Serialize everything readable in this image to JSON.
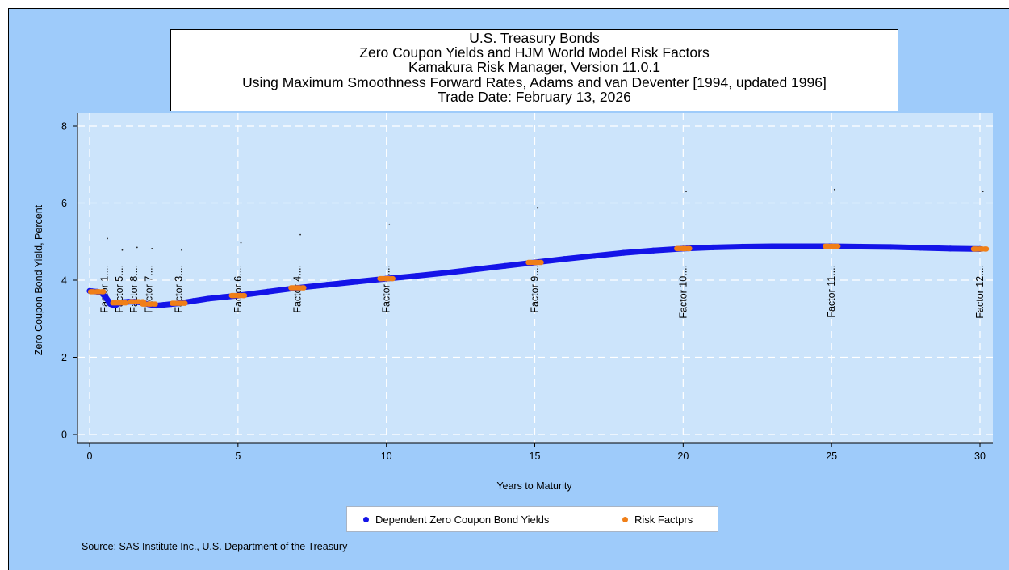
{
  "colors": {
    "frame_bg": "#9ecbfa",
    "plot_bg": "#cce4fb",
    "yield_series": "#1414e8",
    "factor_series": "#f07f18",
    "grid": "#ffffff"
  },
  "title_lines": [
    "U.S. Treasury Bonds",
    "Zero Coupon Yields and HJM World Model Risk Factors",
    "Kamakura Risk Manager, Version 11.0.1",
    "Using Maximum Smoothness Forward Rates, Adams and van Deventer [1994, updated 1996]",
    "Trade Date: February 13, 2026"
  ],
  "legend": {
    "yield_label": "Dependent Zero Coupon Bond Yields",
    "factor_label": "Risk Factprs"
  },
  "source": "Source: SAS Institute Inc., U.S. Department of the Treasury",
  "chart_data": {
    "type": "scatter",
    "xlabel": "Years to Maturity",
    "ylabel": "Zero Coupon Bond Yield, Percent",
    "xlim": [
      0,
      30
    ],
    "ylim": [
      0,
      8
    ],
    "xticks": [
      0,
      5,
      10,
      15,
      20,
      25,
      30
    ],
    "yticks": [
      0,
      2,
      4,
      6,
      8
    ],
    "grid": true,
    "legend_position": "bottom",
    "series": [
      {
        "name": "Dependent Zero Coupon Bond Yields",
        "style": "dense-dots",
        "x": [
          0,
          0.1,
          0.25,
          0.4,
          0.55,
          0.7,
          0.85,
          1,
          1.15,
          1.3,
          1.5,
          1.75,
          2,
          2.25,
          2.5,
          2.75,
          3,
          3.5,
          4,
          4.5,
          5,
          6,
          7,
          8,
          9,
          10,
          11,
          12,
          13,
          14,
          15,
          16,
          17,
          18,
          19,
          20,
          21,
          22,
          23,
          24,
          25,
          26,
          27,
          28,
          29,
          30
        ],
        "y": [
          3.72,
          3.71,
          3.7,
          3.67,
          3.55,
          3.38,
          3.34,
          3.4,
          3.43,
          3.44,
          3.44,
          3.42,
          3.37,
          3.34,
          3.36,
          3.38,
          3.4,
          3.46,
          3.52,
          3.56,
          3.6,
          3.7,
          3.8,
          3.88,
          3.96,
          4.04,
          4.11,
          4.19,
          4.28,
          4.37,
          4.46,
          4.55,
          4.63,
          4.71,
          4.77,
          4.82,
          4.85,
          4.87,
          4.88,
          4.88,
          4.88,
          4.87,
          4.86,
          4.84,
          4.82,
          4.81
        ]
      },
      {
        "name": "Risk Factprs",
        "style": "short-segments",
        "x": [
          0.25,
          1.0,
          1.6,
          2.0,
          3.0,
          5.0,
          7.0,
          10.0,
          15.0,
          20.0,
          25.0,
          30.0
        ],
        "y": [
          3.7,
          3.41,
          3.44,
          3.38,
          3.4,
          3.6,
          3.8,
          4.04,
          4.46,
          4.82,
          4.88,
          4.81
        ]
      }
    ],
    "factor_annotations": [
      {
        "label": "Factor 1....",
        "x": 0.5
      },
      {
        "label": "Factor 5....",
        "x": 1.0
      },
      {
        "label": "Factor 8....",
        "x": 1.5
      },
      {
        "label": "Factor 7....",
        "x": 2.0
      },
      {
        "label": "Factor 3....",
        "x": 3.0
      },
      {
        "label": "Factor 6....",
        "x": 5.0
      },
      {
        "label": "Factor 4....",
        "x": 7.0
      },
      {
        "label": "Factor 2....",
        "x": 10.0
      },
      {
        "label": "Factor 9....",
        "x": 15.0
      },
      {
        "label": "Factor 10....",
        "x": 20.0
      },
      {
        "label": "Factor 11....",
        "x": 25.0
      },
      {
        "label": "Factor 12....",
        "x": 30.0
      }
    ],
    "annotation_baseline_y": 4.4,
    "stray_points": [
      {
        "x": 0.6,
        "y": 5.08
      },
      {
        "x": 1.1,
        "y": 4.78
      },
      {
        "x": 1.6,
        "y": 4.85
      },
      {
        "x": 2.1,
        "y": 4.82
      },
      {
        "x": 3.1,
        "y": 4.78
      },
      {
        "x": 5.1,
        "y": 4.97
      },
      {
        "x": 7.1,
        "y": 5.18
      },
      {
        "x": 10.1,
        "y": 5.45
      },
      {
        "x": 15.1,
        "y": 5.87
      },
      {
        "x": 20.1,
        "y": 6.3
      },
      {
        "x": 25.1,
        "y": 6.35
      },
      {
        "x": 30.1,
        "y": 6.3
      }
    ]
  }
}
